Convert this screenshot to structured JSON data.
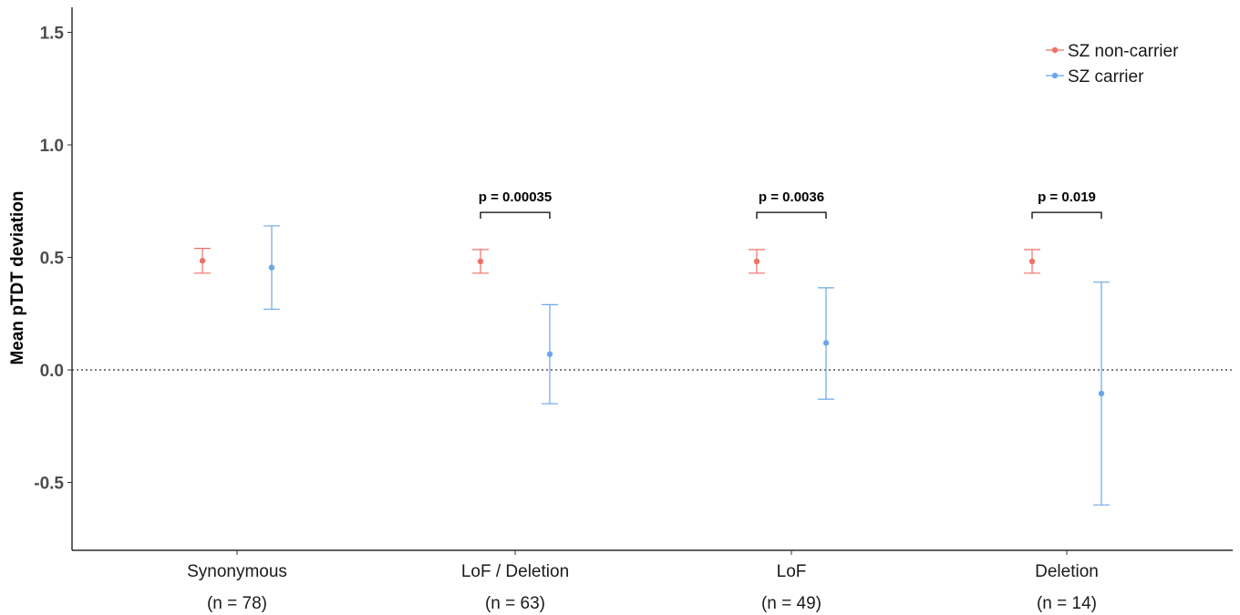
{
  "chart_data": {
    "type": "scatter",
    "ylabel": "Mean pTDT deviation",
    "xlabel": "",
    "ylim": [
      -0.8,
      1.6
    ],
    "yticks": [
      -0.5,
      0.0,
      0.5,
      1.0,
      1.5
    ],
    "ytick_labels": [
      "-0.5",
      "0.0",
      "0.5",
      "1.0",
      "1.5"
    ],
    "grid": false,
    "reference_line": {
      "y": 0.0,
      "style": "dotted"
    },
    "legend_position": "top-right",
    "categories": [
      {
        "name": "Synonymous",
        "n_label": "(n = 78)"
      },
      {
        "name": "LoF / Deletion",
        "n_label": "(n = 63)"
      },
      {
        "name": "LoF",
        "n_label": "(n = 49)"
      },
      {
        "name": "Deletion",
        "n_label": "(n = 14)"
      }
    ],
    "series": [
      {
        "name": "SZ non-carrier",
        "color": "#f07167",
        "values": [
          0.485,
          0.482,
          0.482,
          0.482
        ],
        "lower": [
          0.43,
          0.43,
          0.43,
          0.43
        ],
        "upper": [
          0.54,
          0.535,
          0.535,
          0.535
        ]
      },
      {
        "name": "SZ carrier",
        "color": "#6aa7ea",
        "values": [
          0.455,
          0.07,
          0.12,
          -0.105
        ],
        "lower": [
          0.27,
          -0.15,
          -0.13,
          -0.6
        ],
        "upper": [
          0.64,
          0.29,
          0.365,
          0.39
        ]
      }
    ],
    "annotations": [
      {
        "category_index": 1,
        "text": "p = 0.00035",
        "y": 0.7
      },
      {
        "category_index": 2,
        "text": "p = 0.0036",
        "y": 0.7
      },
      {
        "category_index": 3,
        "text": "p = 0.019",
        "y": 0.7
      }
    ]
  }
}
